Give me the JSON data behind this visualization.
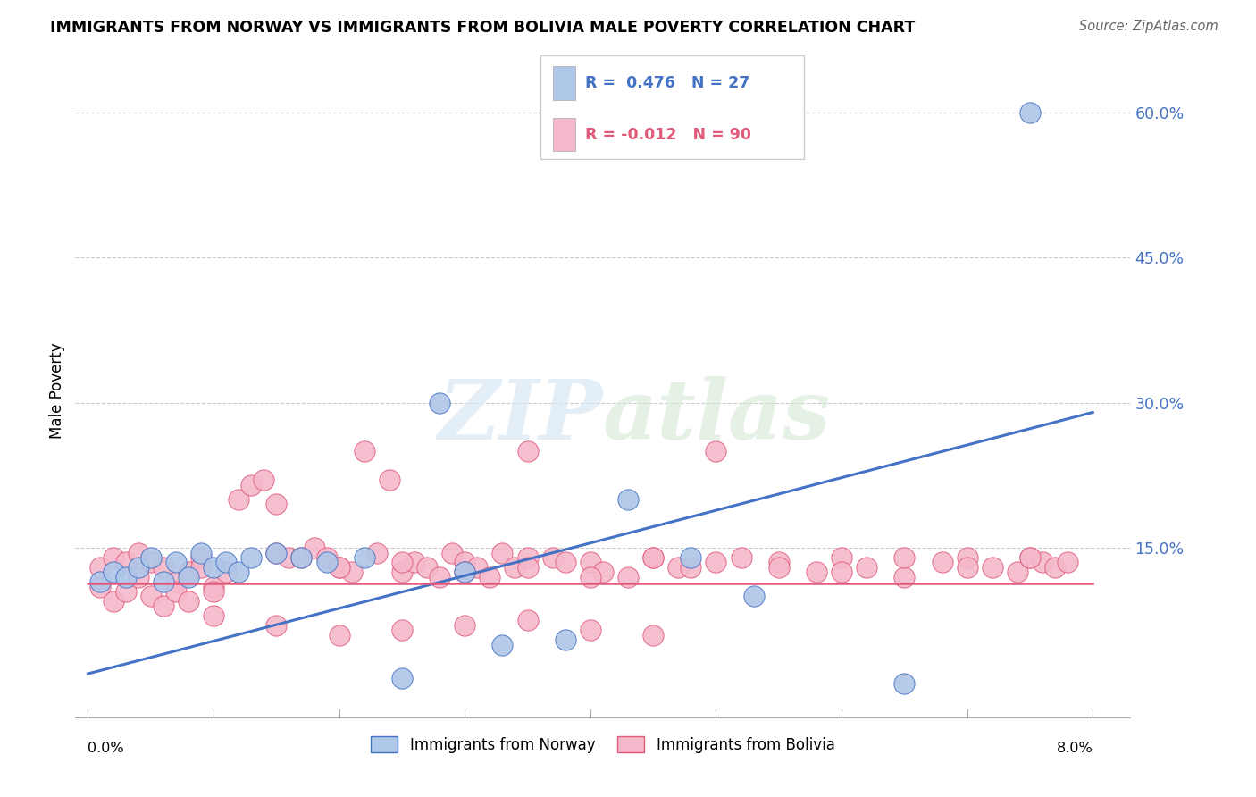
{
  "title": "IMMIGRANTS FROM NORWAY VS IMMIGRANTS FROM BOLIVIA MALE POVERTY CORRELATION CHART",
  "source": "Source: ZipAtlas.com",
  "ylabel": "Male Poverty",
  "norway_R": 0.476,
  "norway_N": 27,
  "bolivia_R": -0.012,
  "bolivia_N": 90,
  "norway_color": "#aec6e8",
  "bolivia_color": "#f5b8cb",
  "norway_line_color": "#4472c4",
  "bolivia_line_color": "#e05a7a",
  "watermark_zip": "ZIP",
  "watermark_atlas": "atlas",
  "norway_x": [
    0.001,
    0.002,
    0.003,
    0.004,
    0.005,
    0.006,
    0.007,
    0.008,
    0.009,
    0.01,
    0.011,
    0.012,
    0.013,
    0.015,
    0.017,
    0.019,
    0.022,
    0.025,
    0.028,
    0.03,
    0.033,
    0.038,
    0.043,
    0.048,
    0.053,
    0.065,
    0.075
  ],
  "norway_y": [
    0.115,
    0.125,
    0.12,
    0.13,
    0.14,
    0.115,
    0.135,
    0.12,
    0.145,
    0.13,
    0.135,
    0.125,
    0.14,
    0.145,
    0.14,
    0.135,
    0.14,
    0.015,
    0.3,
    0.125,
    0.05,
    0.055,
    0.2,
    0.14,
    0.1,
    0.01,
    0.6
  ],
  "bolivia_x": [
    0.001,
    0.001,
    0.002,
    0.002,
    0.003,
    0.003,
    0.004,
    0.004,
    0.005,
    0.005,
    0.006,
    0.006,
    0.007,
    0.007,
    0.008,
    0.008,
    0.009,
    0.009,
    0.01,
    0.01,
    0.011,
    0.012,
    0.013,
    0.014,
    0.015,
    0.015,
    0.016,
    0.017,
    0.018,
    0.019,
    0.02,
    0.021,
    0.022,
    0.023,
    0.024,
    0.025,
    0.026,
    0.027,
    0.028,
    0.029,
    0.03,
    0.031,
    0.032,
    0.033,
    0.034,
    0.035,
    0.035,
    0.037,
    0.038,
    0.04,
    0.041,
    0.043,
    0.045,
    0.047,
    0.048,
    0.05,
    0.052,
    0.055,
    0.058,
    0.06,
    0.062,
    0.065,
    0.068,
    0.07,
    0.072,
    0.074,
    0.075,
    0.076,
    0.077,
    0.078,
    0.02,
    0.025,
    0.03,
    0.035,
    0.04,
    0.045,
    0.05,
    0.055,
    0.06,
    0.065,
    0.07,
    0.075,
    0.01,
    0.015,
    0.02,
    0.025,
    0.03,
    0.035,
    0.04,
    0.045
  ],
  "bolivia_y": [
    0.11,
    0.13,
    0.095,
    0.14,
    0.105,
    0.135,
    0.12,
    0.145,
    0.1,
    0.135,
    0.09,
    0.13,
    0.115,
    0.105,
    0.095,
    0.125,
    0.14,
    0.13,
    0.11,
    0.105,
    0.125,
    0.2,
    0.215,
    0.22,
    0.195,
    0.145,
    0.14,
    0.14,
    0.15,
    0.14,
    0.13,
    0.125,
    0.25,
    0.145,
    0.22,
    0.125,
    0.135,
    0.13,
    0.12,
    0.145,
    0.135,
    0.13,
    0.12,
    0.145,
    0.13,
    0.14,
    0.25,
    0.14,
    0.135,
    0.135,
    0.125,
    0.12,
    0.14,
    0.13,
    0.13,
    0.25,
    0.14,
    0.135,
    0.125,
    0.14,
    0.13,
    0.12,
    0.135,
    0.14,
    0.13,
    0.125,
    0.14,
    0.135,
    0.13,
    0.135,
    0.13,
    0.135,
    0.125,
    0.13,
    0.12,
    0.14,
    0.135,
    0.13,
    0.125,
    0.14,
    0.13,
    0.14,
    0.08,
    0.07,
    0.06,
    0.065,
    0.07,
    0.075,
    0.065,
    0.06
  ],
  "norway_line_x": [
    0.0,
    0.08
  ],
  "norway_line_y": [
    0.02,
    0.29
  ],
  "bolivia_line_y": [
    0.113,
    0.113
  ],
  "ytick_positions": [
    0.0,
    0.15,
    0.3,
    0.45,
    0.6
  ],
  "ytick_labels": [
    "",
    "15.0%",
    "30.0%",
    "45.0%",
    "60.0%"
  ],
  "xlim": [
    -0.001,
    0.083
  ],
  "ylim": [
    -0.025,
    0.65
  ]
}
